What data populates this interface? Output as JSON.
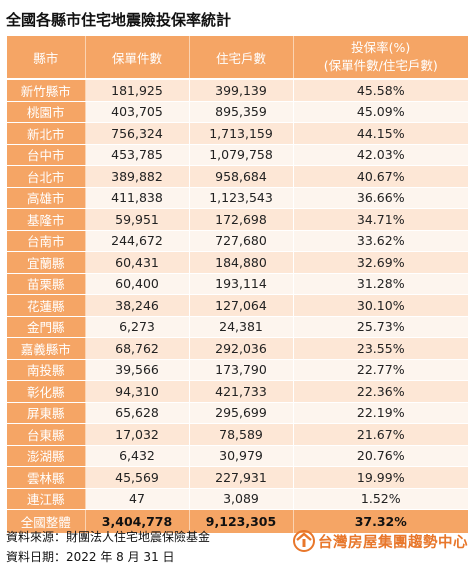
{
  "title": "全國各縣市住宅地震險投保率統計",
  "table": {
    "headers": {
      "county": "縣市",
      "policies": "保單件數",
      "households": "住宅戶數",
      "rate_line1": "投保率(%)",
      "rate_line2": "(保單件數/住宅戶數)"
    },
    "rows": [
      {
        "county": "新竹縣市",
        "policies": "181,925",
        "households": "399,139",
        "rate": "45.58%"
      },
      {
        "county": "桃園市",
        "policies": "403,705",
        "households": "895,359",
        "rate": "45.09%"
      },
      {
        "county": "新北市",
        "policies": "756,324",
        "households": "1,713,159",
        "rate": "44.15%"
      },
      {
        "county": "台中市",
        "policies": "453,785",
        "households": "1,079,758",
        "rate": "42.03%"
      },
      {
        "county": "台北市",
        "policies": "389,882",
        "households": "958,684",
        "rate": "40.67%"
      },
      {
        "county": "高雄市",
        "policies": "411,838",
        "households": "1,123,543",
        "rate": "36.66%"
      },
      {
        "county": "基隆市",
        "policies": "59,951",
        "households": "172,698",
        "rate": "34.71%"
      },
      {
        "county": "台南市",
        "policies": "244,672",
        "households": "727,680",
        "rate": "33.62%"
      },
      {
        "county": "宜蘭縣",
        "policies": "60,431",
        "households": "184,880",
        "rate": "32.69%"
      },
      {
        "county": "苗栗縣",
        "policies": "60,400",
        "households": "193,114",
        "rate": "31.28%"
      },
      {
        "county": "花蓮縣",
        "policies": "38,246",
        "households": "127,064",
        "rate": "30.10%"
      },
      {
        "county": "金門縣",
        "policies": "6,273",
        "households": "24,381",
        "rate": "25.73%"
      },
      {
        "county": "嘉義縣市",
        "policies": "68,762",
        "households": "292,036",
        "rate": "23.55%"
      },
      {
        "county": "南投縣",
        "policies": "39,566",
        "households": "173,790",
        "rate": "22.77%"
      },
      {
        "county": "彰化縣",
        "policies": "94,310",
        "households": "421,733",
        "rate": "22.36%"
      },
      {
        "county": "屏東縣",
        "policies": "65,628",
        "households": "295,699",
        "rate": "22.19%"
      },
      {
        "county": "台東縣",
        "policies": "17,032",
        "households": "78,589",
        "rate": "21.67%"
      },
      {
        "county": "澎湖縣",
        "policies": "6,432",
        "households": "30,979",
        "rate": "20.76%"
      },
      {
        "county": "雲林縣",
        "policies": "45,569",
        "households": "227,931",
        "rate": "19.99%"
      },
      {
        "county": "連江縣",
        "policies": "47",
        "households": "3,089",
        "rate": "1.52%"
      }
    ],
    "total": {
      "county": "全國整體",
      "policies": "3,404,778",
      "households": "9,123,305",
      "rate": "37.32%"
    }
  },
  "footer": {
    "source": "資料來源：財團法人住宅地震保險基金",
    "date": "資料日期：2022 年 8 月 31 日"
  },
  "logo": {
    "text": "台灣房屋集團趨勢中心",
    "color": "#e8772b",
    "icon": "house-roof-icon"
  },
  "colors": {
    "header": "#f5a565",
    "row_odd": "#fde7d6",
    "row_even": "#fdf5ee"
  }
}
